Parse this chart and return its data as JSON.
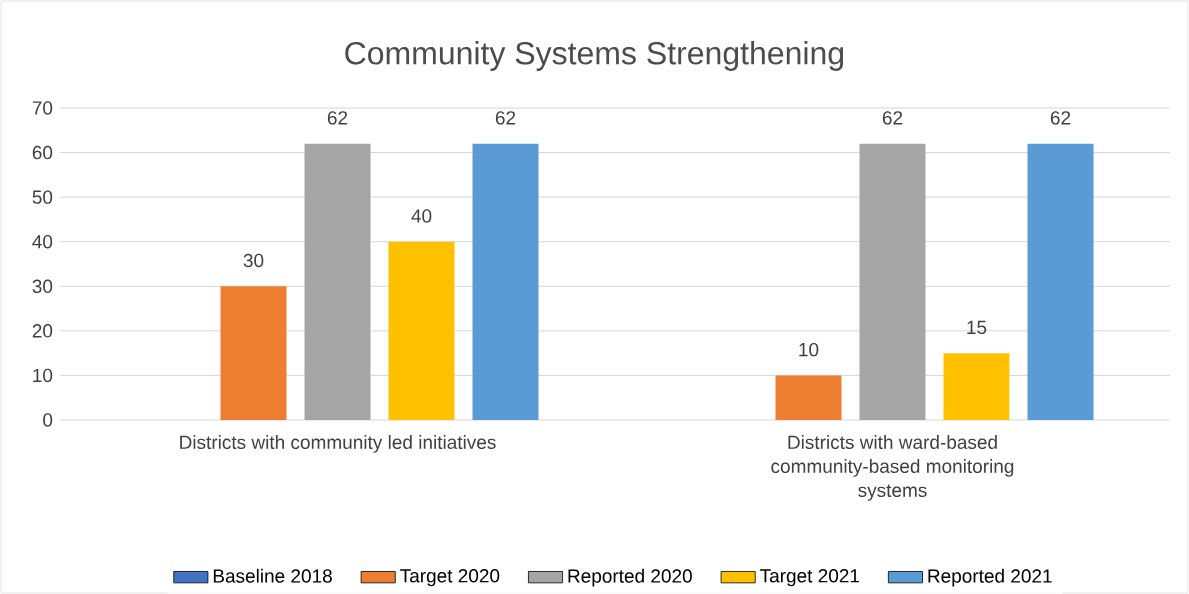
{
  "chart_data": {
    "type": "bar",
    "title": "Community Systems Strengthening",
    "categories": [
      "Districts with community led initiatives",
      "Districts with ward-based community-based monitoring systems"
    ],
    "series": [
      {
        "name": "Baseline 2018",
        "color": "#4472c4",
        "values": [
          null,
          null
        ]
      },
      {
        "name": "Target 2020",
        "color": "#ed7d31",
        "values": [
          30,
          10
        ]
      },
      {
        "name": "Reported 2020",
        "color": "#a5a5a5",
        "values": [
          62,
          62
        ]
      },
      {
        "name": "Target 2021",
        "color": "#ffc000",
        "values": [
          40,
          15
        ]
      },
      {
        "name": "Reported 2021",
        "color": "#5b9bd5",
        "values": [
          62,
          62
        ]
      }
    ],
    "ylim": [
      0,
      70
    ],
    "yticks": [
      0,
      10,
      20,
      30,
      40,
      50,
      60,
      70
    ],
    "grid": "y",
    "legend": "bottom",
    "data_labels": true
  }
}
